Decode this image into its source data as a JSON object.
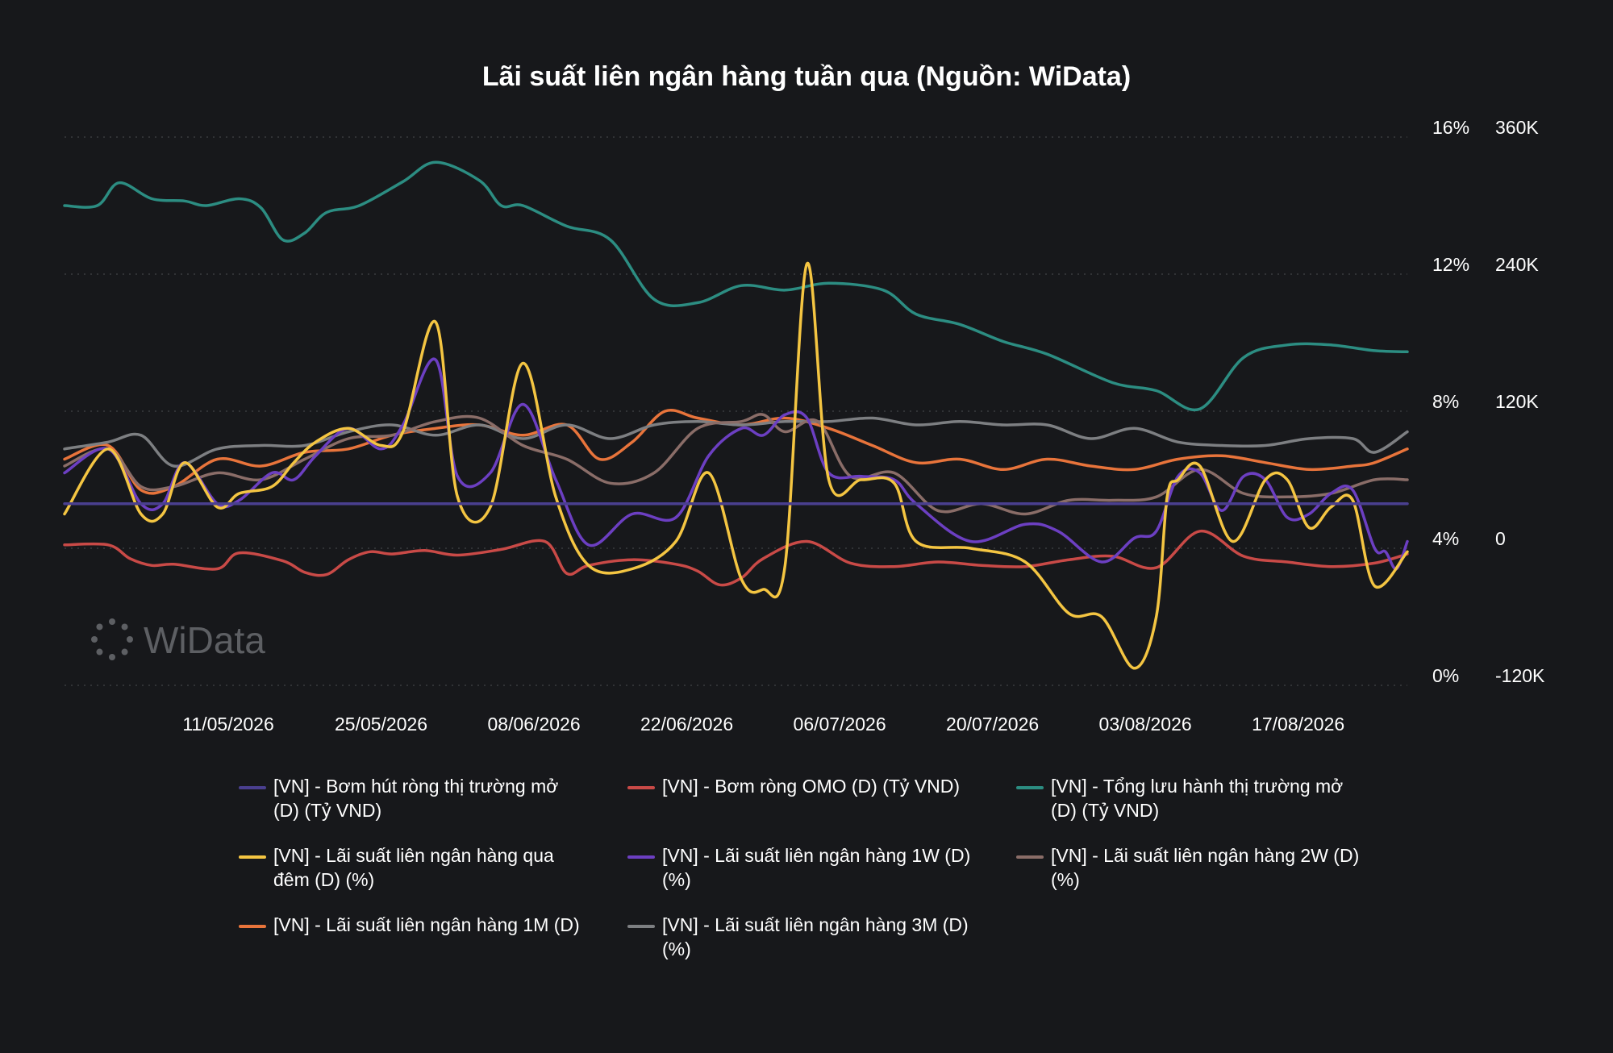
{
  "chart_data": {
    "type": "line",
    "title": "Lãi suất liên ngân hàng tuần qua (Nguồn: WiData)",
    "watermark": "WiData",
    "x_labels": [
      "11/05/2026",
      "25/05/2026",
      "08/06/2026",
      "22/06/2026",
      "06/07/2026",
      "20/07/2026",
      "03/08/2026",
      "17/08/2026"
    ],
    "x_range": [
      "26/04/2026",
      "28/08/2026"
    ],
    "y_left": {
      "ticks": [
        "16%",
        "12%",
        "8%",
        "4%",
        "0%"
      ],
      "min": 0,
      "max": 16,
      "unit": "%"
    },
    "y_right": {
      "ticks": [
        "360K",
        "240K",
        "120K",
        "0",
        "-120K"
      ],
      "min": -120000,
      "max": 360000,
      "unit": "Tỷ VND"
    },
    "grid": true,
    "legend_position": "bottom",
    "series": [
      {
        "name": "[VN] - Bơm hút ròng thị trường mở (D) (Tỷ VND)",
        "color": "#4a3f8f",
        "axis": "right",
        "x": [
          0,
          123
        ],
        "y": [
          39000,
          39000
        ]
      },
      {
        "name": "[VN] - Bơm ròng OMO (D) (Tỷ VND)",
        "color": "#c94a47",
        "axis": "right",
        "x": [
          0,
          4,
          6,
          8,
          10,
          14,
          16,
          20,
          22,
          24,
          26,
          28,
          30,
          33,
          36,
          40,
          44,
          46,
          48,
          52,
          56,
          58,
          60,
          62,
          64,
          68,
          72,
          76,
          80,
          84,
          88,
          92,
          96,
          100,
          104,
          108,
          112,
          116,
          120,
          123
        ],
        "y": [
          3000,
          3000,
          -9000,
          -15000,
          -14000,
          -18000,
          -4000,
          -11000,
          -21000,
          -23000,
          -10000,
          -3000,
          -5000,
          -2000,
          -6000,
          -1000,
          6000,
          -22000,
          -15000,
          -10000,
          -14000,
          -20000,
          -32000,
          -26000,
          -9000,
          6000,
          -13000,
          -16000,
          -12000,
          -15000,
          -16000,
          -10000,
          -7000,
          -17000,
          15000,
          -7000,
          -12000,
          -16000,
          -13000,
          -5000
        ]
      },
      {
        "name": "[VN] - Tổng lưu hành thị trường mở (D) (Tỷ VND)",
        "color": "#2c8d82",
        "axis": "right",
        "x": [
          0,
          3,
          5,
          8,
          11,
          13,
          16,
          18,
          20,
          22,
          24,
          27,
          31,
          34,
          38,
          40,
          42,
          46,
          50,
          54,
          58,
          62,
          66,
          70,
          75,
          78,
          82,
          86,
          90,
          96,
          100,
          104,
          108,
          112,
          116,
          120,
          123
        ],
        "y": [
          300000,
          300000,
          320000,
          306000,
          304000,
          300000,
          306000,
          298000,
          270000,
          276000,
          294000,
          300000,
          321000,
          338000,
          322000,
          300000,
          300000,
          282000,
          270000,
          218000,
          215000,
          230000,
          226000,
          232000,
          226000,
          205000,
          196000,
          181000,
          170000,
          145000,
          138000,
          122000,
          167000,
          178000,
          178000,
          173000,
          172000
        ]
      },
      {
        "name": "[VN] - Lãi suất liên ngân hàng qua đêm (D) (%)",
        "color": "#f4c542",
        "axis": "left",
        "x": [
          0,
          4,
          7,
          9,
          11,
          14,
          16,
          19,
          21,
          23,
          26,
          29,
          31,
          34,
          36,
          39,
          42,
          45,
          48,
          52,
          56,
          59,
          62,
          64,
          66,
          68,
          70,
          73,
          76,
          78,
          83,
          88,
          92,
          95,
          98,
          100,
          101,
          102,
          104,
          107,
          110,
          112,
          114,
          116,
          118,
          120,
          123
        ],
        "y": [
          5.0,
          6.9,
          5.0,
          5.0,
          6.5,
          5.2,
          5.6,
          5.8,
          6.5,
          7.1,
          7.5,
          7.0,
          7.4,
          10.6,
          5.5,
          5.2,
          9.4,
          5.5,
          3.5,
          3.4,
          4.2,
          6.2,
          3.1,
          2.8,
          3.5,
          12.3,
          6.0,
          6.0,
          5.9,
          4.2,
          4.0,
          3.6,
          2.1,
          2.0,
          0.5,
          2.0,
          5.5,
          6.0,
          6.4,
          4.2,
          6.0,
          6.0,
          4.6,
          5.2,
          5.4,
          2.9,
          3.9
        ]
      },
      {
        "name": "[VN] - Lãi suất liên ngân hàng 1W (D) (%)",
        "color": "#6c3fc2",
        "axis": "left",
        "x": [
          0,
          4,
          7,
          9,
          11,
          14,
          16,
          19,
          21,
          23,
          26,
          29,
          31,
          34,
          36,
          39,
          42,
          45,
          48,
          52,
          56,
          59,
          62,
          64,
          66,
          68,
          70,
          73,
          76,
          78,
          83,
          88,
          91,
          95,
          98,
          100,
          102,
          104,
          106,
          108,
          110,
          112,
          114,
          116,
          118,
          120,
          121,
          122,
          123
        ],
        "y": [
          6.2,
          6.9,
          5.3,
          5.3,
          6.5,
          5.3,
          5.4,
          6.2,
          6.0,
          6.7,
          7.5,
          6.9,
          7.6,
          9.5,
          6.1,
          6.2,
          8.2,
          6.0,
          4.1,
          5.0,
          4.9,
          6.7,
          7.5,
          7.3,
          7.9,
          7.8,
          6.2,
          6.1,
          6.0,
          5.3,
          4.2,
          4.7,
          4.5,
          3.6,
          4.3,
          4.5,
          6.1,
          6.2,
          5.1,
          6.1,
          6.0,
          4.9,
          5.0,
          5.6,
          5.7,
          4.0,
          3.9,
          3.4,
          4.2
        ]
      },
      {
        "name": "[VN] - Lãi suất liên ngân hàng 2W (D) (%)",
        "color": "#8a6d68",
        "axis": "left",
        "x": [
          0,
          4,
          7,
          10,
          14,
          18,
          22,
          26,
          30,
          34,
          38,
          42,
          46,
          50,
          54,
          58,
          62,
          64,
          66,
          69,
          72,
          76,
          80,
          84,
          88,
          92,
          96,
          100,
          104,
          108,
          112,
          116,
          120,
          123
        ],
        "y": [
          6.4,
          6.9,
          5.8,
          5.8,
          6.2,
          6.0,
          6.6,
          7.2,
          7.3,
          7.7,
          7.8,
          7.0,
          6.6,
          5.9,
          6.2,
          7.5,
          7.7,
          7.9,
          7.4,
          7.7,
          6.1,
          6.2,
          5.1,
          5.3,
          5.0,
          5.4,
          5.4,
          5.5,
          6.3,
          5.6,
          5.5,
          5.6,
          6.0,
          6.0
        ]
      },
      {
        "name": "[VN] - Lãi suất liên ngân hàng 1M (D)",
        "color": "#e8743b",
        "axis": "left",
        "x": [
          0,
          4,
          7,
          10,
          14,
          18,
          22,
          26,
          30,
          34,
          38,
          42,
          46,
          49,
          52,
          55,
          58,
          62,
          66,
          70,
          74,
          78,
          82,
          86,
          90,
          94,
          98,
          102,
          106,
          110,
          114,
          118,
          120,
          123
        ],
        "y": [
          6.6,
          7.0,
          5.7,
          5.8,
          6.6,
          6.4,
          6.8,
          6.9,
          7.3,
          7.5,
          7.6,
          7.3,
          7.6,
          6.6,
          7.1,
          8.0,
          7.8,
          7.6,
          7.8,
          7.5,
          7.0,
          6.5,
          6.6,
          6.3,
          6.6,
          6.4,
          6.3,
          6.6,
          6.7,
          6.5,
          6.3,
          6.4,
          6.5,
          6.9
        ]
      },
      {
        "name": "[VN] - Lãi suất liên ngân hàng 3M (D) (%)",
        "color": "#7d7f82",
        "axis": "left",
        "x": [
          0,
          4,
          7,
          10,
          14,
          18,
          22,
          26,
          30,
          34,
          38,
          42,
          46,
          50,
          54,
          58,
          62,
          66,
          70,
          74,
          78,
          82,
          86,
          90,
          94,
          98,
          102,
          106,
          110,
          114,
          118,
          120,
          123
        ],
        "y": [
          6.9,
          7.1,
          7.3,
          6.4,
          6.9,
          7.0,
          7.0,
          7.4,
          7.6,
          7.3,
          7.6,
          7.2,
          7.6,
          7.2,
          7.6,
          7.7,
          7.6,
          7.7,
          7.7,
          7.8,
          7.6,
          7.7,
          7.6,
          7.6,
          7.2,
          7.5,
          7.1,
          7.0,
          7.0,
          7.2,
          7.2,
          6.8,
          7.4
        ]
      }
    ]
  }
}
